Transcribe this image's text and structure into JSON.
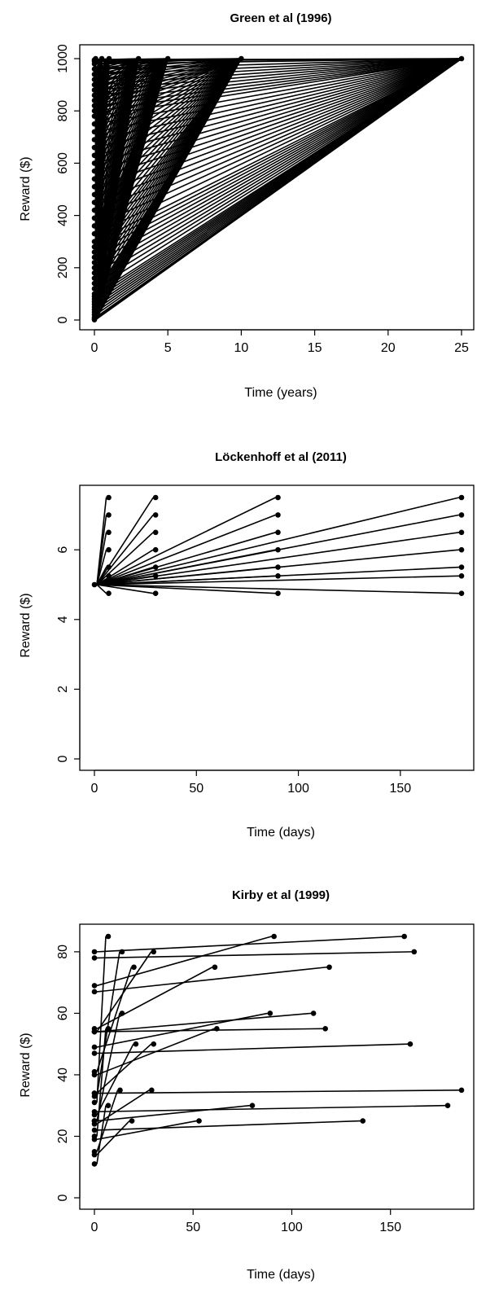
{
  "chart_data": [
    {
      "type": "scatter",
      "title": "Green et al (1996)",
      "xlabel": "Time (years)",
      "ylabel": "Reward ($)",
      "xlim": [
        0,
        25
      ],
      "ylim": [
        0,
        1000
      ],
      "xticks": [
        0,
        5,
        10,
        15,
        20,
        25
      ],
      "yticks": [
        0,
        200,
        400,
        600,
        800,
        1000
      ],
      "delays": [
        0.0833,
        0.5,
        1,
        3,
        5,
        10,
        25
      ],
      "delayed_amount": 1000,
      "immediate_amounts": [
        1,
        5,
        10,
        20,
        30,
        40,
        50,
        60,
        70,
        80,
        90,
        100,
        120,
        140,
        160,
        180,
        200,
        220,
        240,
        260,
        280,
        300,
        330,
        360,
        390,
        420,
        450,
        480,
        510,
        540,
        570,
        600,
        630,
        660,
        690,
        720,
        750,
        780,
        800,
        820,
        840,
        860,
        880,
        900,
        920,
        940,
        960,
        980,
        990,
        995
      ]
    },
    {
      "type": "scatter",
      "title": "Löckenhoff et al (2011)",
      "xlabel": "Time (days)",
      "ylabel": "Reward ($)",
      "xlim": [
        0,
        180
      ],
      "ylim": [
        0,
        7.5
      ],
      "xticks": [
        0,
        50,
        100,
        150
      ],
      "yticks": [
        0,
        2,
        4,
        6
      ],
      "immediate_amount": 5,
      "delays": [
        7,
        30,
        90,
        180
      ],
      "delayed_amounts": [
        4.75,
        5.25,
        5.5,
        6,
        6.5,
        7,
        7.5
      ]
    },
    {
      "type": "scatter",
      "title": "Kirby et al (1999)",
      "xlabel": "Time (days)",
      "ylabel": "Reward ($)",
      "xlim": [
        0,
        186
      ],
      "ylim": [
        0,
        85
      ],
      "xticks": [
        0,
        50,
        100,
        150
      ],
      "yticks": [
        0,
        20,
        40,
        60,
        80
      ],
      "pairs": [
        {
          "ss": 54,
          "ll": 55,
          "d": 117
        },
        {
          "ss": 55,
          "ll": 75,
          "d": 61
        },
        {
          "ss": 19,
          "ll": 25,
          "d": 53
        },
        {
          "ss": 31,
          "ll": 85,
          "d": 7
        },
        {
          "ss": 14,
          "ll": 25,
          "d": 19
        },
        {
          "ss": 47,
          "ll": 50,
          "d": 160
        },
        {
          "ss": 15,
          "ll": 35,
          "d": 13
        },
        {
          "ss": 25,
          "ll": 60,
          "d": 14
        },
        {
          "ss": 78,
          "ll": 80,
          "d": 162
        },
        {
          "ss": 40,
          "ll": 55,
          "d": 62
        },
        {
          "ss": 11,
          "ll": 30,
          "d": 7
        },
        {
          "ss": 67,
          "ll": 75,
          "d": 119
        },
        {
          "ss": 34,
          "ll": 35,
          "d": 186
        },
        {
          "ss": 27,
          "ll": 50,
          "d": 21
        },
        {
          "ss": 69,
          "ll": 85,
          "d": 91
        },
        {
          "ss": 49,
          "ll": 60,
          "d": 89
        },
        {
          "ss": 80,
          "ll": 85,
          "d": 157
        },
        {
          "ss": 24,
          "ll": 35,
          "d": 29
        },
        {
          "ss": 33,
          "ll": 80,
          "d": 14
        },
        {
          "ss": 28,
          "ll": 30,
          "d": 179
        },
        {
          "ss": 34,
          "ll": 50,
          "d": 30
        },
        {
          "ss": 25,
          "ll": 30,
          "d": 80
        },
        {
          "ss": 41,
          "ll": 75,
          "d": 20
        },
        {
          "ss": 54,
          "ll": 60,
          "d": 111
        },
        {
          "ss": 54,
          "ll": 80,
          "d": 30
        },
        {
          "ss": 22,
          "ll": 25,
          "d": 136
        },
        {
          "ss": 20,
          "ll": 55,
          "d": 7
        }
      ]
    }
  ]
}
